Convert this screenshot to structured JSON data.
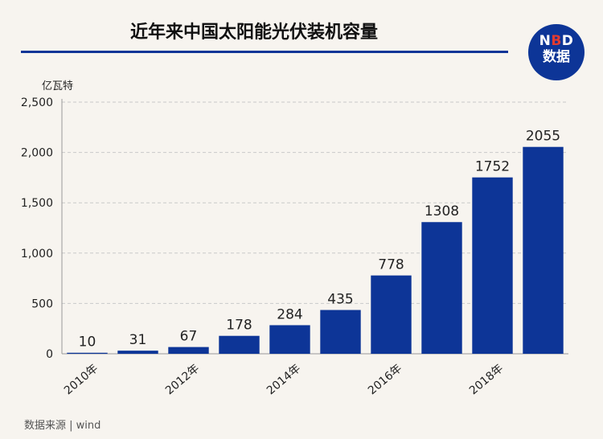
{
  "title": "近年来中国太阳能光伏装机容量",
  "logo": {
    "top_prefix": "N",
    "top_accent": "B",
    "top_suffix": "D",
    "bottom": "数据"
  },
  "unit_label": "亿瓦特",
  "source": "数据来源 | wind",
  "colors": {
    "bar": "#0d3597",
    "title_rule": "#0d3597",
    "logo_bg": "#0d3597",
    "logo_accent": "#e23b30"
  },
  "chart_data": {
    "type": "bar",
    "categories": [
      "2010",
      "2011",
      "2012",
      "2013",
      "2014",
      "2015",
      "2016",
      "2017",
      "2018",
      "2019"
    ],
    "values": [
      10,
      31,
      67,
      178,
      284,
      435,
      778,
      1308,
      1752,
      2055
    ],
    "data_labels": [
      "10",
      "31",
      "67",
      "178",
      "284",
      "435",
      "778",
      "1308",
      "1752",
      "2055"
    ],
    "x_tick_labels": [
      "2010年",
      "",
      "2012年",
      "",
      "2014年",
      "",
      "2016年",
      "",
      "2018年",
      ""
    ],
    "ylim": [
      0,
      2500
    ],
    "y_ticks": [
      0,
      500,
      1000,
      1500,
      2000,
      2500
    ],
    "y_tick_labels": [
      "0",
      "500",
      "1,000",
      "1,500",
      "2,000",
      "2,500"
    ],
    "grid": true,
    "ylabel": "亿瓦特"
  }
}
